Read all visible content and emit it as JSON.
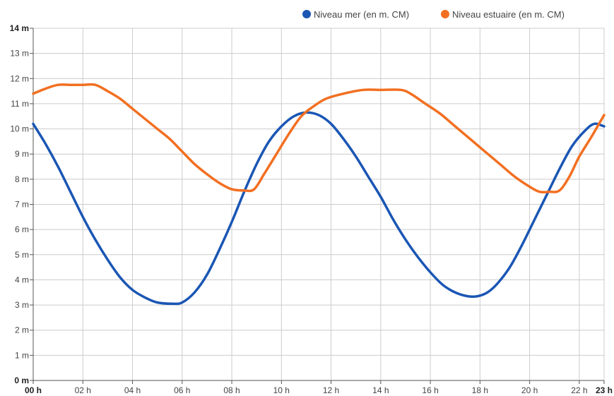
{
  "chart_data": {
    "type": "line",
    "title": "",
    "xlabel": "",
    "ylabel": "",
    "xlim": [
      0,
      23
    ],
    "ylim": [
      0,
      14
    ],
    "grid": true,
    "legend_position": "top-right",
    "x_ticks": [
      {
        "value": 0,
        "label": "00 h",
        "bold": true
      },
      {
        "value": 2,
        "label": "02 h"
      },
      {
        "value": 4,
        "label": "04 h"
      },
      {
        "value": 6,
        "label": "06 h"
      },
      {
        "value": 8,
        "label": "08 h"
      },
      {
        "value": 10,
        "label": "10 h"
      },
      {
        "value": 12,
        "label": "12 h"
      },
      {
        "value": 14,
        "label": "14 h"
      },
      {
        "value": 16,
        "label": "16 h"
      },
      {
        "value": 18,
        "label": "18 h"
      },
      {
        "value": 20,
        "label": "20 h"
      },
      {
        "value": 22,
        "label": "22 h"
      },
      {
        "value": 23,
        "label": "23 h",
        "bold": true
      }
    ],
    "y_ticks": [
      {
        "value": 0,
        "label": "0 m",
        "bold": true
      },
      {
        "value": 1,
        "label": "1 m"
      },
      {
        "value": 2,
        "label": "2 m"
      },
      {
        "value": 3,
        "label": "3 m"
      },
      {
        "value": 4,
        "label": "4 m"
      },
      {
        "value": 5,
        "label": "5 m"
      },
      {
        "value": 6,
        "label": "6 m"
      },
      {
        "value": 7,
        "label": "7 m"
      },
      {
        "value": 8,
        "label": "8 m"
      },
      {
        "value": 9,
        "label": "9 m"
      },
      {
        "value": 10,
        "label": "10 m"
      },
      {
        "value": 11,
        "label": "11 m"
      },
      {
        "value": 12,
        "label": "12 m"
      },
      {
        "value": 13,
        "label": "13 m"
      },
      {
        "value": 14,
        "label": "14 m",
        "bold": true
      }
    ],
    "series": [
      {
        "name": "Niveau mer (en m. CM)",
        "color": "#1a56b4",
        "points": [
          [
            0,
            10.2
          ],
          [
            0.5,
            9.4
          ],
          [
            1,
            8.5
          ],
          [
            1.5,
            7.5
          ],
          [
            2,
            6.5
          ],
          [
            2.5,
            5.6
          ],
          [
            3,
            4.8
          ],
          [
            3.5,
            4.1
          ],
          [
            4,
            3.6
          ],
          [
            4.5,
            3.3
          ],
          [
            5,
            3.1
          ],
          [
            5.6,
            3.05
          ],
          [
            6,
            3.1
          ],
          [
            6.5,
            3.5
          ],
          [
            7,
            4.2
          ],
          [
            7.5,
            5.2
          ],
          [
            8,
            6.3
          ],
          [
            8.5,
            7.5
          ],
          [
            9,
            8.6
          ],
          [
            9.5,
            9.5
          ],
          [
            10,
            10.1
          ],
          [
            10.5,
            10.5
          ],
          [
            11,
            10.65
          ],
          [
            11.5,
            10.55
          ],
          [
            12,
            10.2
          ],
          [
            12.5,
            9.6
          ],
          [
            13,
            8.9
          ],
          [
            13.5,
            8.1
          ],
          [
            14,
            7.3
          ],
          [
            14.5,
            6.4
          ],
          [
            15,
            5.6
          ],
          [
            15.5,
            4.9
          ],
          [
            16,
            4.3
          ],
          [
            16.5,
            3.8
          ],
          [
            17,
            3.5
          ],
          [
            17.5,
            3.35
          ],
          [
            17.9,
            3.35
          ],
          [
            18.3,
            3.5
          ],
          [
            18.7,
            3.85
          ],
          [
            19.2,
            4.5
          ],
          [
            19.7,
            5.4
          ],
          [
            20.2,
            6.4
          ],
          [
            20.7,
            7.4
          ],
          [
            21.2,
            8.4
          ],
          [
            21.7,
            9.3
          ],
          [
            22.2,
            9.9
          ],
          [
            22.6,
            10.2
          ],
          [
            23,
            10.1
          ]
        ]
      },
      {
        "name": "Niveau estuaire (en m. CM)",
        "color": "#f26f21",
        "points": [
          [
            0,
            11.4
          ],
          [
            0.5,
            11.6
          ],
          [
            1,
            11.75
          ],
          [
            1.5,
            11.75
          ],
          [
            2,
            11.75
          ],
          [
            2.5,
            11.75
          ],
          [
            3,
            11.5
          ],
          [
            3.5,
            11.2
          ],
          [
            4,
            10.8
          ],
          [
            4.5,
            10.4
          ],
          [
            5,
            10.0
          ],
          [
            5.5,
            9.6
          ],
          [
            6,
            9.1
          ],
          [
            6.5,
            8.6
          ],
          [
            7,
            8.2
          ],
          [
            7.5,
            7.85
          ],
          [
            8,
            7.6
          ],
          [
            8.5,
            7.55
          ],
          [
            8.9,
            7.6
          ],
          [
            9.3,
            8.2
          ],
          [
            9.8,
            9.0
          ],
          [
            10.3,
            9.8
          ],
          [
            10.8,
            10.5
          ],
          [
            11.3,
            10.9
          ],
          [
            11.8,
            11.2
          ],
          [
            12.5,
            11.4
          ],
          [
            13.3,
            11.55
          ],
          [
            14,
            11.55
          ],
          [
            14.8,
            11.55
          ],
          [
            15.2,
            11.4
          ],
          [
            15.8,
            11.0
          ],
          [
            16.4,
            10.6
          ],
          [
            17,
            10.1
          ],
          [
            17.6,
            9.6
          ],
          [
            18.2,
            9.1
          ],
          [
            18.8,
            8.6
          ],
          [
            19.4,
            8.1
          ],
          [
            20,
            7.7
          ],
          [
            20.4,
            7.5
          ],
          [
            20.8,
            7.5
          ],
          [
            21.2,
            7.55
          ],
          [
            21.6,
            8.1
          ],
          [
            22,
            8.9
          ],
          [
            22.5,
            9.7
          ],
          [
            23,
            10.55
          ]
        ]
      }
    ]
  },
  "colors": {
    "grid": "#cccccc",
    "axis": "#555555"
  }
}
